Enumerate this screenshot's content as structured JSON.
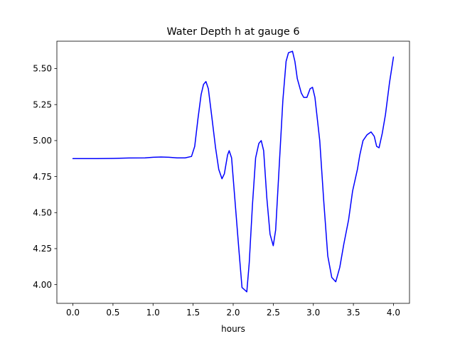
{
  "chart_data": {
    "type": "line",
    "title": "Water Depth h at gauge 6",
    "xlabel": "hours",
    "ylabel": "",
    "xlim": [
      -0.2,
      4.2
    ],
    "ylim": [
      3.87,
      5.69
    ],
    "grid": false,
    "x_ticks": [
      "0.0",
      "0.5",
      "1.0",
      "1.5",
      "2.0",
      "2.5",
      "3.0",
      "3.5",
      "4.0"
    ],
    "y_ticks": [
      "4.00",
      "4.25",
      "4.50",
      "4.75",
      "5.00",
      "5.25",
      "5.50"
    ],
    "series": [
      {
        "color": "#0000ff",
        "points": [
          [
            0.0,
            4.875
          ],
          [
            0.3,
            4.875
          ],
          [
            0.5,
            4.876
          ],
          [
            0.7,
            4.879
          ],
          [
            0.9,
            4.88
          ],
          [
            1.0,
            4.884
          ],
          [
            1.1,
            4.886
          ],
          [
            1.2,
            4.884
          ],
          [
            1.3,
            4.88
          ],
          [
            1.4,
            4.88
          ],
          [
            1.48,
            4.89
          ],
          [
            1.52,
            4.96
          ],
          [
            1.56,
            5.15
          ],
          [
            1.6,
            5.32
          ],
          [
            1.63,
            5.39
          ],
          [
            1.66,
            5.41
          ],
          [
            1.69,
            5.36
          ],
          [
            1.73,
            5.18
          ],
          [
            1.78,
            4.95
          ],
          [
            1.82,
            4.8
          ],
          [
            1.86,
            4.735
          ],
          [
            1.89,
            4.77
          ],
          [
            1.93,
            4.9
          ],
          [
            1.95,
            4.93
          ],
          [
            1.98,
            4.88
          ],
          [
            2.02,
            4.6
          ],
          [
            2.07,
            4.25
          ],
          [
            2.11,
            3.98
          ],
          [
            2.15,
            3.96
          ],
          [
            2.17,
            3.95
          ],
          [
            2.2,
            4.15
          ],
          [
            2.24,
            4.55
          ],
          [
            2.28,
            4.88
          ],
          [
            2.32,
            4.98
          ],
          [
            2.35,
            5.0
          ],
          [
            2.38,
            4.93
          ],
          [
            2.42,
            4.6
          ],
          [
            2.46,
            4.35
          ],
          [
            2.5,
            4.27
          ],
          [
            2.53,
            4.38
          ],
          [
            2.58,
            4.88
          ],
          [
            2.62,
            5.28
          ],
          [
            2.66,
            5.55
          ],
          [
            2.69,
            5.61
          ],
          [
            2.74,
            5.62
          ],
          [
            2.77,
            5.55
          ],
          [
            2.8,
            5.43
          ],
          [
            2.85,
            5.33
          ],
          [
            2.88,
            5.3
          ],
          [
            2.92,
            5.3
          ],
          [
            2.96,
            5.36
          ],
          [
            2.99,
            5.37
          ],
          [
            3.02,
            5.3
          ],
          [
            3.08,
            5.0
          ],
          [
            3.13,
            4.58
          ],
          [
            3.18,
            4.2
          ],
          [
            3.23,
            4.05
          ],
          [
            3.28,
            4.02
          ],
          [
            3.33,
            4.12
          ],
          [
            3.38,
            4.28
          ],
          [
            3.44,
            4.45
          ],
          [
            3.49,
            4.65
          ],
          [
            3.55,
            4.8
          ],
          [
            3.58,
            4.9
          ],
          [
            3.62,
            5.0
          ],
          [
            3.67,
            5.04
          ],
          [
            3.72,
            5.06
          ],
          [
            3.76,
            5.03
          ],
          [
            3.79,
            4.96
          ],
          [
            3.82,
            4.95
          ],
          [
            3.86,
            5.05
          ],
          [
            3.9,
            5.18
          ],
          [
            3.95,
            5.4
          ],
          [
            4.0,
            5.58
          ]
        ]
      }
    ]
  }
}
